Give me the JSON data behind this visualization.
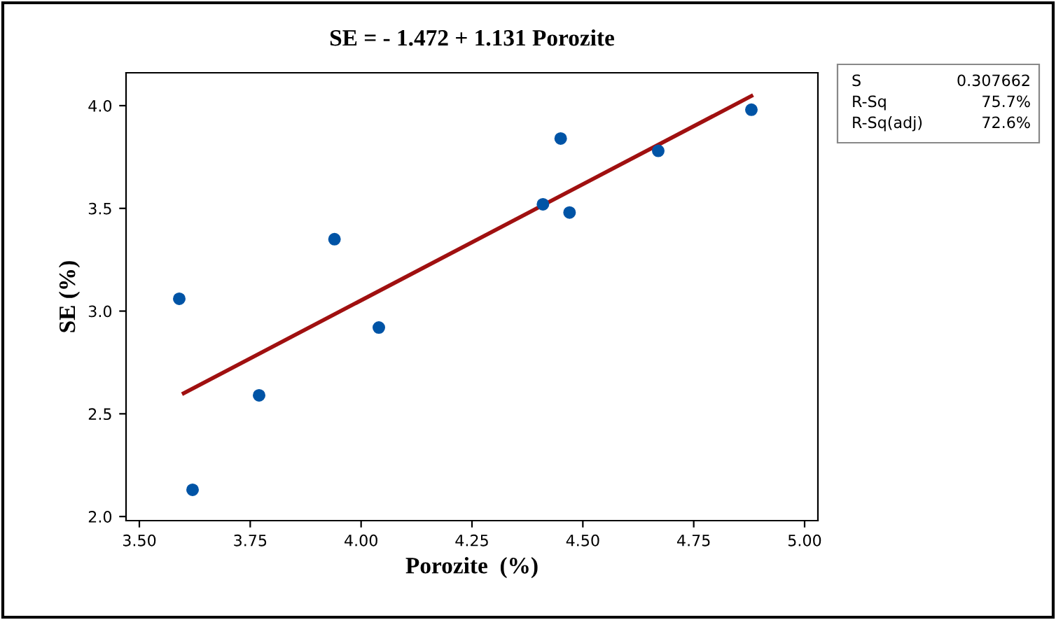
{
  "chart_data": {
    "type": "scatter",
    "title": "SE = - 1.472 + 1.131 Porozite",
    "xlabel": "Porozite  (%)",
    "ylabel": "SE (%)",
    "x": [
      3.59,
      3.62,
      3.77,
      3.94,
      4.04,
      4.41,
      4.45,
      4.47,
      4.67,
      4.88
    ],
    "series": [
      {
        "marker": "circle",
        "color": "#0054a6",
        "values": [
          3.06,
          2.13,
          2.59,
          3.35,
          2.92,
          3.52,
          3.84,
          3.48,
          3.78,
          3.98
        ]
      },
      {
        "type": "line",
        "marker": "none",
        "color": "#a01010",
        "x": [
          3.6,
          4.88
        ],
        "values": [
          2.6,
          4.047
        ]
      }
    ],
    "xlim": [
      3.47,
      5.03
    ],
    "ylim": [
      1.98,
      4.16
    ],
    "xticks": [
      {
        "value": 3.5,
        "label": "3.50"
      },
      {
        "value": 3.75,
        "label": "3.75"
      },
      {
        "value": 4.0,
        "label": "4.00"
      },
      {
        "value": 4.25,
        "label": "4.25"
      },
      {
        "value": 4.5,
        "label": "4.50"
      },
      {
        "value": 4.75,
        "label": "4.75"
      },
      {
        "value": 5.0,
        "label": "5.00"
      }
    ],
    "yticks": [
      {
        "value": 2.0,
        "label": "2.0"
      },
      {
        "value": 2.5,
        "label": "2.5"
      },
      {
        "value": 3.0,
        "label": "3.0"
      },
      {
        "value": 3.5,
        "label": "3.5"
      },
      {
        "value": 4.0,
        "label": "4.0"
      }
    ],
    "annotations": [
      [
        "S",
        "0.307662"
      ],
      [
        "R-Sq",
        "75.7%"
      ],
      [
        "R-Sq(adj)",
        "72.6%"
      ]
    ],
    "grid": false,
    "legend": false
  }
}
